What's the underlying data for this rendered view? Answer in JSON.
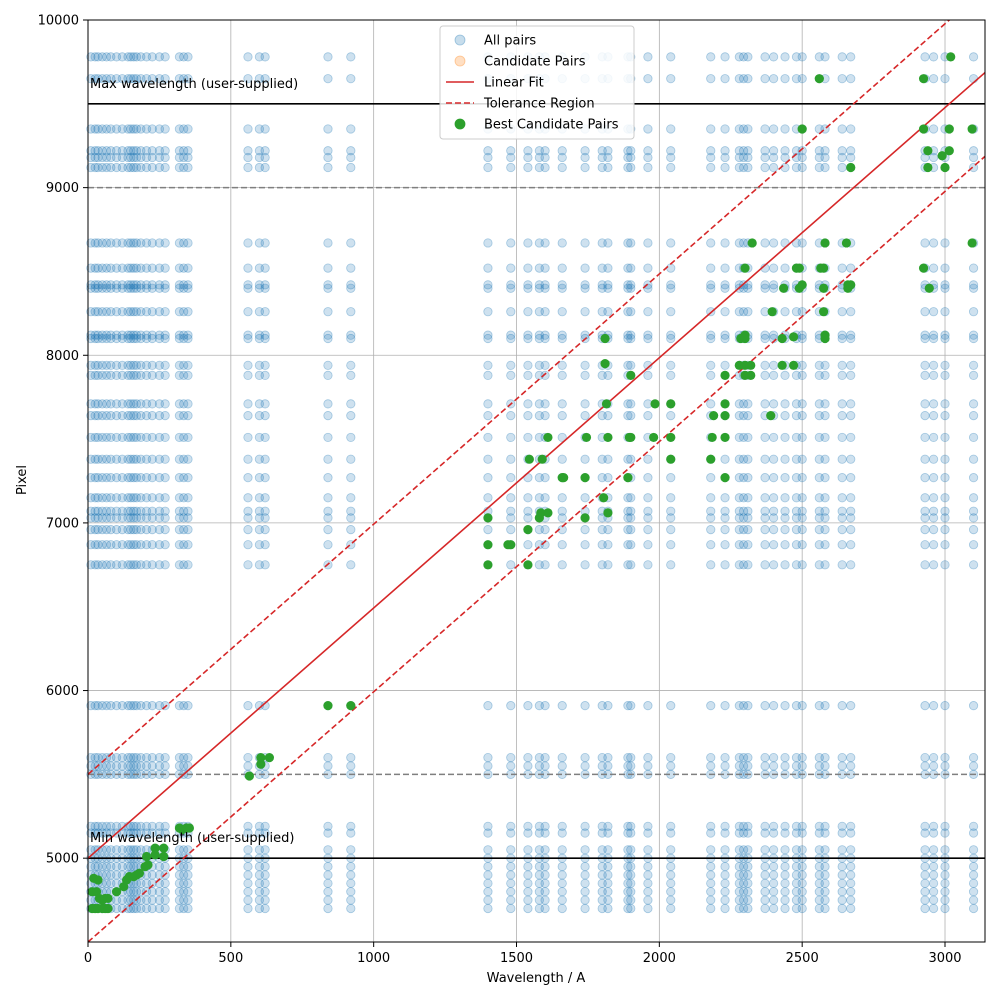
{
  "chart_data": {
    "type": "scatter",
    "title": "",
    "xlabel": "Wavelength / A",
    "ylabel": "Pixel",
    "xlim": [
      0,
      3140
    ],
    "ylim": [
      4500,
      10000
    ],
    "xticks": [
      0,
      500,
      1000,
      1500,
      2000,
      2500,
      3000
    ],
    "yticks": [
      5000,
      6000,
      7000,
      8000,
      9000,
      10000
    ],
    "grid": true,
    "legend_position": "top-center",
    "colors": {
      "all_pairs": "#1f77b4",
      "candidate_pairs": "#ff7f0e",
      "fit": "#d62728",
      "best": "#2ca02c",
      "hline_solid": "#000000",
      "hline_dashed": "#7f7f7f"
    },
    "legend": [
      {
        "label": "All pairs",
        "kind": "marker",
        "color": "#1f77b4",
        "alpha": 0.25
      },
      {
        "label": "Candidate Pairs",
        "kind": "marker",
        "color": "#ff7f0e",
        "alpha": 0.25
      },
      {
        "label": "Linear Fit",
        "kind": "line",
        "color": "#d62728",
        "dash": false
      },
      {
        "label": "Tolerance Region",
        "kind": "line",
        "color": "#d62728",
        "dash": true
      },
      {
        "label": "Best Candidate Pairs",
        "kind": "marker",
        "color": "#2ca02c",
        "alpha": 1
      }
    ],
    "linear_fit": {
      "slope": 1.4925,
      "intercept": 5000
    },
    "tolerance": 500,
    "hlines": [
      {
        "y": 9500,
        "style": "solid",
        "label": "Max wavelength (user-supplied)"
      },
      {
        "y": 5000,
        "style": "solid",
        "label": "Min wavelength (user-supplied)"
      },
      {
        "y": 9000,
        "style": "dashed",
        "label": ""
      },
      {
        "y": 5500,
        "style": "dashed",
        "label": ""
      }
    ],
    "series": [
      {
        "name": "All pairs",
        "grid_x": [
          10,
          25,
          35,
          50,
          65,
          80,
          100,
          120,
          140,
          150,
          160,
          170,
          185,
          205,
          225,
          250,
          270,
          320,
          335,
          350,
          560,
          600,
          620,
          840,
          920,
          1400,
          1480,
          1540,
          1580,
          1600,
          1660,
          1740,
          1800,
          1820,
          1890,
          1900,
          1960,
          2040,
          2180,
          2230,
          2280,
          2295,
          2310,
          2370,
          2400,
          2440,
          2480,
          2500,
          2560,
          2580,
          2640,
          2670,
          2930,
          2960,
          3000,
          3100
        ],
        "grid_y": [
          4700,
          4750,
          4800,
          4850,
          4900,
          4950,
          5000,
          5050,
          5150,
          5190,
          5500,
          5550,
          5600,
          5910,
          6750,
          6870,
          6960,
          7030,
          7070,
          7150,
          7270,
          7380,
          7510,
          7640,
          7710,
          7880,
          7940,
          8100,
          8120,
          8260,
          8400,
          8420,
          8520,
          8670,
          9120,
          9180,
          9220,
          9350,
          9650,
          9780
        ]
      },
      {
        "name": "Candidate Pairs",
        "points": []
      },
      {
        "name": "Best Candidate Pairs",
        "points": [
          [
            15,
            4700
          ],
          [
            25,
            4700
          ],
          [
            35,
            4700
          ],
          [
            50,
            4700
          ],
          [
            60,
            4700
          ],
          [
            70,
            4700
          ],
          [
            15,
            4800
          ],
          [
            30,
            4800
          ],
          [
            40,
            4760
          ],
          [
            50,
            4750
          ],
          [
            60,
            4760
          ],
          [
            70,
            4760
          ],
          [
            20,
            4880
          ],
          [
            35,
            4870
          ],
          [
            100,
            4800
          ],
          [
            125,
            4830
          ],
          [
            135,
            4870
          ],
          [
            145,
            4890
          ],
          [
            160,
            4890
          ],
          [
            170,
            4900
          ],
          [
            180,
            4910
          ],
          [
            200,
            4950
          ],
          [
            210,
            4960
          ],
          [
            205,
            5010
          ],
          [
            235,
            5020
          ],
          [
            235,
            5060
          ],
          [
            265,
            5010
          ],
          [
            265,
            5060
          ],
          [
            320,
            5180
          ],
          [
            330,
            5170
          ],
          [
            345,
            5180
          ],
          [
            355,
            5180
          ],
          [
            565,
            5490
          ],
          [
            605,
            5560
          ],
          [
            605,
            5600
          ],
          [
            635,
            5600
          ],
          [
            840,
            5910
          ],
          [
            920,
            5910
          ],
          [
            1400,
            6750
          ],
          [
            1400,
            6870
          ],
          [
            1400,
            7030
          ],
          [
            1470,
            6870
          ],
          [
            1480,
            6870
          ],
          [
            1540,
            6750
          ],
          [
            1540,
            6960
          ],
          [
            1545,
            7380
          ],
          [
            1580,
            7030
          ],
          [
            1585,
            7060
          ],
          [
            1590,
            7380
          ],
          [
            1610,
            7060
          ],
          [
            1610,
            7510
          ],
          [
            1660,
            7270
          ],
          [
            1665,
            7270
          ],
          [
            1740,
            7030
          ],
          [
            1740,
            7270
          ],
          [
            1745,
            7510
          ],
          [
            1805,
            7150
          ],
          [
            1810,
            7950
          ],
          [
            1810,
            8100
          ],
          [
            1815,
            7710
          ],
          [
            1820,
            7510
          ],
          [
            1820,
            7060
          ],
          [
            1890,
            7270
          ],
          [
            1895,
            7510
          ],
          [
            1900,
            7880
          ],
          [
            1900,
            7510
          ],
          [
            1980,
            7510
          ],
          [
            1985,
            7710
          ],
          [
            2040,
            7380
          ],
          [
            2040,
            7510
          ],
          [
            2040,
            7710
          ],
          [
            2180,
            7380
          ],
          [
            2185,
            7510
          ],
          [
            2190,
            7640
          ],
          [
            2230,
            7270
          ],
          [
            2230,
            7510
          ],
          [
            2230,
            7640
          ],
          [
            2230,
            7710
          ],
          [
            2230,
            7880
          ],
          [
            2280,
            7940
          ],
          [
            2285,
            8100
          ],
          [
            2300,
            8120
          ],
          [
            2300,
            8100
          ],
          [
            2300,
            7940
          ],
          [
            2300,
            7880
          ],
          [
            2300,
            8520
          ],
          [
            2320,
            7880
          ],
          [
            2320,
            7940
          ],
          [
            2325,
            8670
          ],
          [
            2390,
            7640
          ],
          [
            2395,
            8260
          ],
          [
            2430,
            7940
          ],
          [
            2430,
            8100
          ],
          [
            2435,
            8400
          ],
          [
            2470,
            7940
          ],
          [
            2470,
            8110
          ],
          [
            2480,
            8520
          ],
          [
            2490,
            8520
          ],
          [
            2490,
            8400
          ],
          [
            2500,
            8420
          ],
          [
            2500,
            9350
          ],
          [
            2560,
            9650
          ],
          [
            2565,
            8520
          ],
          [
            2575,
            8520
          ],
          [
            2575,
            8400
          ],
          [
            2575,
            8260
          ],
          [
            2580,
            8100
          ],
          [
            2580,
            8120
          ],
          [
            2580,
            8670
          ],
          [
            2655,
            8670
          ],
          [
            2660,
            8400
          ],
          [
            2660,
            8420
          ],
          [
            2670,
            8420
          ],
          [
            2670,
            9120
          ],
          [
            2925,
            9350
          ],
          [
            2925,
            9650
          ],
          [
            2925,
            8520
          ],
          [
            2940,
            9220
          ],
          [
            2940,
            9120
          ],
          [
            2945,
            8400
          ],
          [
            2990,
            9190
          ],
          [
            3000,
            9120
          ],
          [
            3015,
            9220
          ],
          [
            3015,
            9350
          ],
          [
            3020,
            9780
          ],
          [
            3095,
            9350
          ],
          [
            3095,
            8670
          ]
        ]
      }
    ]
  }
}
